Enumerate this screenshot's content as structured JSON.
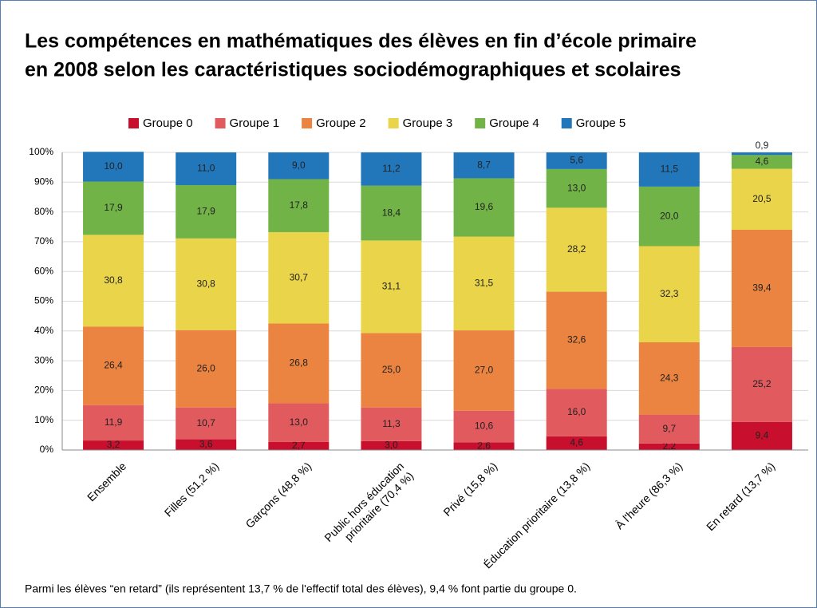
{
  "chart_data": {
    "type": "stacked_bar",
    "title": "Les compétences en mathématiques des élèves en fin d’école primaire",
    "subtitle": "en 2008 selon les caractéristiques sociodémographiques et scolaires",
    "categories": [
      "Ensemble",
      "Filles (51,2 %)",
      "Garçons (48,8 %)",
      "Public hors éducation prioritaire (70,4 %)",
      "Privé (15,8 %)",
      "Éducation prioritaire (13,8 %)",
      "À l'heure (86,3 %)",
      "En retard (13,7 %)"
    ],
    "series": [
      {
        "name": "Groupe 0",
        "color": "#c8102e",
        "values": [
          3.2,
          3.6,
          2.7,
          3.0,
          2.6,
          4.6,
          2.2,
          9.4
        ],
        "value_labels": [
          "3,2",
          "3,6",
          "2,7",
          "3,0",
          "2,6",
          "4,6",
          "2,2",
          "9,4"
        ]
      },
      {
        "name": "Groupe 1",
        "color": "#e05a5e",
        "values": [
          11.9,
          10.7,
          13.0,
          11.3,
          10.6,
          16.0,
          9.7,
          25.2
        ],
        "value_labels": [
          "11,9",
          "10,7",
          "13,0",
          "11,3",
          "10,6",
          "16,0",
          "9,7",
          "25,2"
        ]
      },
      {
        "name": "Groupe 2",
        "color": "#eb8440",
        "values": [
          26.4,
          26.0,
          26.8,
          25.0,
          27.0,
          32.6,
          24.3,
          39.4
        ],
        "value_labels": [
          "26,4",
          "26,0",
          "26,8",
          "25,0",
          "27,0",
          "32,6",
          "24,3",
          "39,4"
        ]
      },
      {
        "name": "Groupe 3",
        "color": "#ead54a",
        "values": [
          30.8,
          30.8,
          30.7,
          31.1,
          31.5,
          28.2,
          32.3,
          20.5
        ],
        "value_labels": [
          "30,8",
          "30,8",
          "30,7",
          "31,1",
          "31,5",
          "28,2",
          "32,3",
          "20,5"
        ]
      },
      {
        "name": "Groupe 4",
        "color": "#72b347",
        "values": [
          17.9,
          17.9,
          17.8,
          18.4,
          19.6,
          13.0,
          20.0,
          4.6
        ],
        "value_labels": [
          "17,9",
          "17,9",
          "17,8",
          "18,4",
          "19,6",
          "13,0",
          "20,0",
          "4,6"
        ]
      },
      {
        "name": "Groupe 5",
        "color": "#2277bb",
        "values": [
          10.0,
          11.0,
          9.0,
          11.2,
          8.7,
          5.6,
          11.5,
          0.9
        ],
        "value_labels": [
          "10,0",
          "11,0",
          "9,0",
          "11,2",
          "8,7",
          "5,6",
          "11,5",
          "0,9"
        ]
      }
    ],
    "ylim": [
      0,
      100
    ],
    "yticks": [
      {
        "value": 0,
        "label": "0%"
      },
      {
        "value": 10,
        "label": "10%"
      },
      {
        "value": 20,
        "label": "20%"
      },
      {
        "value": 30,
        "label": "30%"
      },
      {
        "value": 40,
        "label": "40%"
      },
      {
        "value": 50,
        "label": "50%"
      },
      {
        "value": 60,
        "label": "60%"
      },
      {
        "value": 70,
        "label": "70%"
      },
      {
        "value": 80,
        "label": "80%"
      },
      {
        "value": 90,
        "label": "90%"
      },
      {
        "value": 100,
        "label": "100%"
      }
    ],
    "grid": true,
    "legend": "top",
    "note": "Parmi les élèves “en retard” (ils représentent 13,7 % de l'effectif total des élèves), 9,4 % font partie du groupe 0."
  }
}
